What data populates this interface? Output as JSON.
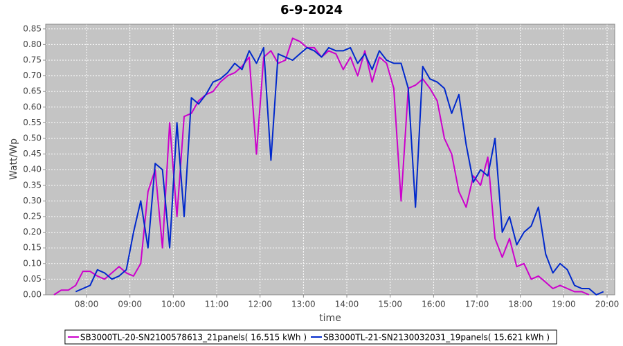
{
  "chart_data": {
    "type": "line",
    "title": "6-9-2024",
    "x_label": "time",
    "y_label": "Watt/Wp",
    "x": [
      435,
      445,
      455,
      465,
      475,
      485,
      495,
      505,
      515,
      525,
      535,
      545,
      555,
      565,
      575,
      585,
      595,
      605,
      615,
      625,
      635,
      645,
      655,
      665,
      675,
      685,
      695,
      705,
      715,
      725,
      735,
      745,
      755,
      765,
      775,
      785,
      795,
      805,
      815,
      825,
      835,
      845,
      855,
      865,
      875,
      885,
      895,
      905,
      915,
      925,
      935,
      945,
      955,
      965,
      975,
      985,
      995,
      1005,
      1015,
      1025,
      1035,
      1045,
      1055,
      1065,
      1075,
      1085,
      1095,
      1105,
      1115,
      1125,
      1135,
      1145,
      1155,
      1165,
      1175,
      1185,
      1195
    ],
    "series": [
      {
        "name": "SB3000TL-20-SN2100578613_21panels( 16.515 kWh )",
        "color": "#cc00cc",
        "values": [
          0.0,
          0.015,
          0.015,
          0.03,
          0.075,
          0.075,
          0.06,
          0.05,
          0.07,
          0.09,
          0.07,
          0.06,
          0.1,
          0.33,
          0.4,
          0.15,
          0.55,
          0.25,
          0.57,
          0.58,
          0.62,
          0.64,
          0.65,
          0.68,
          0.7,
          0.71,
          0.73,
          0.76,
          0.45,
          0.76,
          0.78,
          0.74,
          0.75,
          0.82,
          0.81,
          0.79,
          0.79,
          0.76,
          0.78,
          0.77,
          0.72,
          0.76,
          0.7,
          0.78,
          0.68,
          0.76,
          0.74,
          0.66,
          0.3,
          0.66,
          0.67,
          0.69,
          0.66,
          0.62,
          0.5,
          0.45,
          0.33,
          0.28,
          0.38,
          0.35,
          0.44,
          0.18,
          0.12,
          0.18,
          0.09,
          0.1,
          0.05,
          0.06,
          0.04,
          0.02,
          0.03,
          0.02,
          0.01,
          0.01,
          0.0,
          null,
          null
        ]
      },
      {
        "name": "SB3000TL-21-SN2130032031_19panels( 15.621 kWh )",
        "color": "#0028cc",
        "values": [
          null,
          null,
          null,
          0.01,
          0.02,
          0.03,
          0.08,
          0.07,
          0.05,
          0.06,
          0.08,
          0.2,
          0.3,
          0.15,
          0.42,
          0.4,
          0.15,
          0.55,
          0.25,
          0.63,
          0.61,
          0.64,
          0.68,
          0.69,
          0.71,
          0.74,
          0.72,
          0.78,
          0.74,
          0.79,
          0.43,
          0.77,
          0.76,
          0.75,
          0.77,
          0.79,
          0.78,
          0.76,
          0.79,
          0.78,
          0.78,
          0.79,
          0.74,
          0.77,
          0.72,
          0.78,
          0.75,
          0.74,
          0.74,
          0.66,
          0.28,
          0.73,
          0.69,
          0.68,
          0.66,
          0.58,
          0.64,
          0.48,
          0.36,
          0.4,
          0.38,
          0.5,
          0.2,
          0.25,
          0.16,
          0.2,
          0.22,
          0.28,
          0.13,
          0.07,
          0.1,
          0.08,
          0.03,
          0.02,
          0.02,
          0.0,
          0.01
        ]
      }
    ],
    "xlim": [
      423.5,
      1210.5
    ],
    "xticks": [
      {
        "value": 480,
        "label": "08:00"
      },
      {
        "value": 540,
        "label": "09:00"
      },
      {
        "value": 600,
        "label": "10:00"
      },
      {
        "value": 660,
        "label": "11:00"
      },
      {
        "value": 720,
        "label": "12:00"
      },
      {
        "value": 780,
        "label": "13:00"
      },
      {
        "value": 840,
        "label": "14:00"
      },
      {
        "value": 900,
        "label": "15:00"
      },
      {
        "value": 960,
        "label": "16:00"
      },
      {
        "value": 1020,
        "label": "17:00"
      },
      {
        "value": 1080,
        "label": "18:00"
      },
      {
        "value": 1140,
        "label": "19:00"
      },
      {
        "value": 1200,
        "label": "20:00"
      }
    ],
    "ylim": [
      0,
      0.865
    ],
    "yticks": [
      {
        "value": 0,
        "label": "0.00"
      },
      0.05,
      {
        "value": 0.1,
        "label": "0.10"
      },
      0.15,
      {
        "value": 0.2,
        "label": "0.20"
      },
      0.25,
      {
        "value": 0.3,
        "label": "0.30"
      },
      0.35,
      {
        "value": 0.4,
        "label": "0.40"
      },
      0.45,
      {
        "value": 0.5,
        "label": "0.50"
      },
      0.55,
      {
        "value": 0.6,
        "label": "0.60"
      },
      0.65,
      {
        "value": 0.7,
        "label": "0.70"
      },
      0.75,
      {
        "value": 0.8,
        "label": "0.80"
      },
      0.85
    ],
    "grid": true,
    "legend": "bottom"
  }
}
